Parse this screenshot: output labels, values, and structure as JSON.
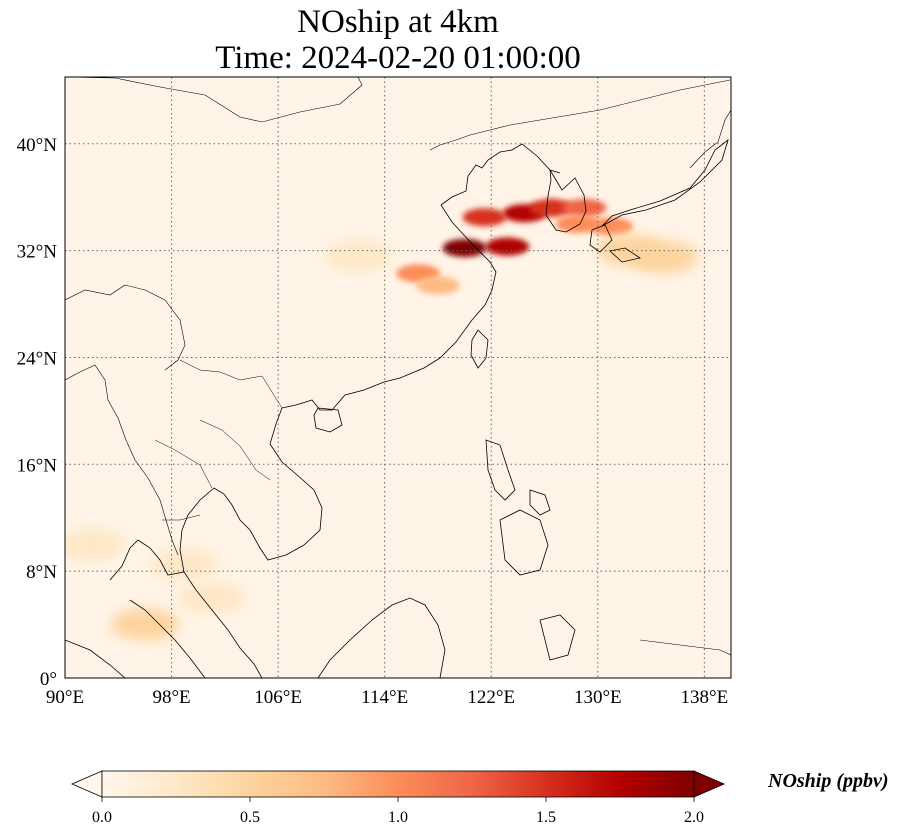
{
  "title": {
    "line1": "NOship at 4km",
    "line2": "Time: 2024-02-20 01:00:00"
  },
  "map": {
    "projection": "PlateCarree",
    "lon_range": [
      90,
      140
    ],
    "lat_range": [
      0,
      45
    ],
    "gridlines": "dotted",
    "lon_ticks": [
      {
        "value": 90,
        "label": "90°E"
      },
      {
        "value": 98,
        "label": "98°E"
      },
      {
        "value": 106,
        "label": "106°E"
      },
      {
        "value": 114,
        "label": "114°E"
      },
      {
        "value": 122,
        "label": "122°E"
      },
      {
        "value": 130,
        "label": "130°E"
      },
      {
        "value": 138,
        "label": "138°E"
      }
    ],
    "lat_ticks": [
      {
        "value": 0,
        "label": "0°"
      },
      {
        "value": 8,
        "label": "8°N"
      },
      {
        "value": 16,
        "label": "16°N"
      },
      {
        "value": 24,
        "label": "24°N"
      },
      {
        "value": 32,
        "label": "32°N"
      },
      {
        "value": 40,
        "label": "40°N"
      }
    ],
    "hotspots": [
      {
        "lon": 120.0,
        "lat": 32.2,
        "value": 2.0
      },
      {
        "lon": 123.2,
        "lat": 32.3,
        "value": 1.8
      },
      {
        "lon": 124.5,
        "lat": 34.8,
        "value": 1.7
      },
      {
        "lon": 126.5,
        "lat": 35.2,
        "value": 1.6
      },
      {
        "lon": 121.5,
        "lat": 34.5,
        "value": 1.4
      },
      {
        "lon": 129.0,
        "lat": 35.2,
        "value": 1.3
      },
      {
        "lon": 128.5,
        "lat": 34.0,
        "value": 1.0
      },
      {
        "lon": 131.0,
        "lat": 33.8,
        "value": 0.9
      },
      {
        "lon": 135.0,
        "lat": 31.5,
        "value": 0.6
      },
      {
        "lon": 132.5,
        "lat": 32.0,
        "value": 0.55
      },
      {
        "lon": 116.5,
        "lat": 30.3,
        "value": 1.1
      },
      {
        "lon": 118.0,
        "lat": 29.4,
        "value": 0.8
      },
      {
        "lon": 112.0,
        "lat": 31.6,
        "value": 0.3
      },
      {
        "lon": 96.0,
        "lat": 4.0,
        "value": 0.4
      },
      {
        "lon": 101.0,
        "lat": 6.0,
        "value": 0.35
      },
      {
        "lon": 99.0,
        "lat": 8.5,
        "value": 0.3
      },
      {
        "lon": 92.0,
        "lat": 10.0,
        "value": 0.25
      }
    ]
  },
  "colorbar": {
    "label": "NOship (ppbv)",
    "min": 0.0,
    "max": 2.0,
    "extend": "both",
    "cmap": "OrRd",
    "stops": [
      "#fff7ec",
      "#fee8c8",
      "#fdd49e",
      "#fdbb84",
      "#fc8d59",
      "#ef6548",
      "#d7301f",
      "#b30000",
      "#7f0000"
    ],
    "ticks": [
      "0.0",
      "0.5",
      "1.0",
      "1.5",
      "2.0"
    ]
  }
}
